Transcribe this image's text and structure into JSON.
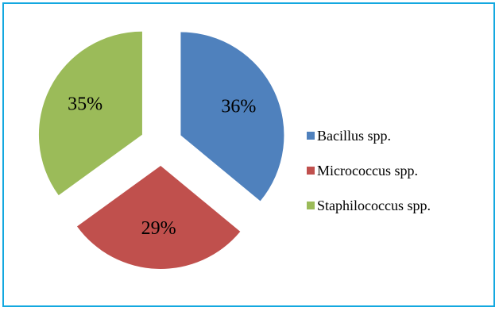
{
  "chart_data": {
    "type": "pie",
    "series": [
      {
        "categories": [
          "Bacillus spp.",
          "Micrococcus spp.",
          "Staphilococcus spp."
        ],
        "values": [
          36,
          29,
          35
        ],
        "labels": [
          "36%",
          "29%",
          "35%"
        ],
        "colors": [
          "#4f81bd",
          "#c0504d",
          "#9bbb59"
        ]
      }
    ],
    "exploded": true,
    "legend_position": "right"
  }
}
